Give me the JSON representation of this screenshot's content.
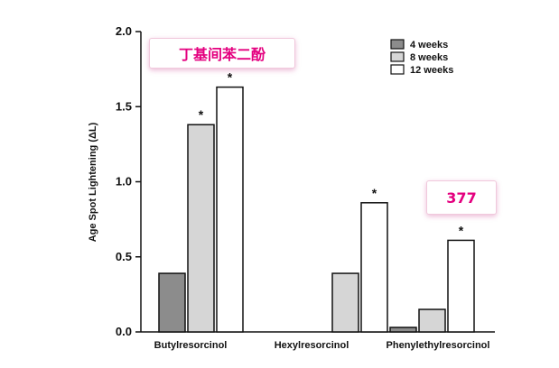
{
  "chart_data": {
    "type": "bar",
    "title": "",
    "xlabel": "",
    "ylabel": "Age Spot Lightening (ΔL)",
    "ylim": [
      0,
      2.0
    ],
    "yticks": [
      "0.0",
      "0.5",
      "1.0",
      "1.5",
      "2.0"
    ],
    "ytick_values": [
      0,
      0.5,
      1.0,
      1.5,
      2.0
    ],
    "categories": [
      "Butylresorcinol",
      "Hexylresorcinol",
      "Phenylethylresorcinol"
    ],
    "series": [
      {
        "name": "4 weeks",
        "color": "#8c8c8c",
        "values": [
          0.39,
          0.0,
          0.03
        ],
        "significant": [
          false,
          false,
          false
        ]
      },
      {
        "name": "8 weeks",
        "color": "#d6d6d6",
        "values": [
          1.38,
          0.39,
          0.15
        ],
        "significant": [
          true,
          false,
          false
        ]
      },
      {
        "name": "12 weeks",
        "color": "#ffffff",
        "values": [
          1.63,
          0.86,
          0.61
        ],
        "significant": [
          true,
          true,
          true
        ]
      }
    ],
    "significance_marker": "*",
    "legend_position": "top-right",
    "grid": false
  },
  "annotations": {
    "butyl_label": "丁基间苯二酚",
    "phenylethyl_label": "377"
  }
}
